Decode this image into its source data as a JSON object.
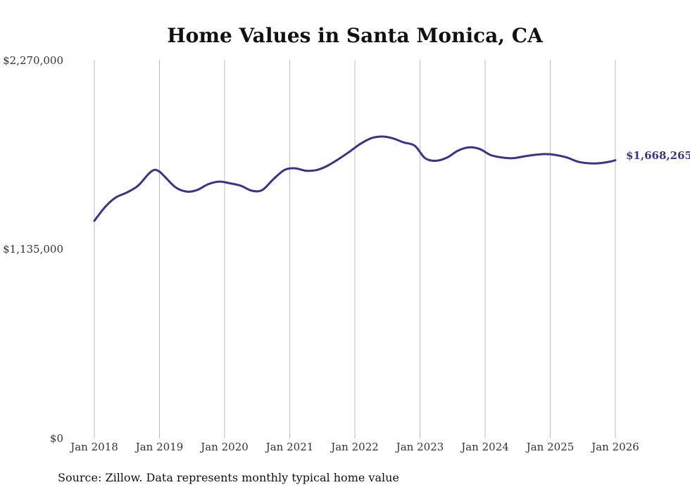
{
  "chart_data": {
    "type": "line",
    "title": "Home Values in Santa Monica, CA",
    "source": "Source: Zillow. Data represents monthly typical home value",
    "xlabel": "",
    "ylabel": "",
    "ylim": [
      0,
      2270000
    ],
    "y_ticks": [
      {
        "value": 0,
        "label": "$0"
      },
      {
        "value": 1135000,
        "label": "$1,135,000"
      },
      {
        "value": 2270000,
        "label": "$2,270,000"
      }
    ],
    "x_range": [
      2018.0,
      2026.0
    ],
    "x_ticks": [
      {
        "value": 2018,
        "label": "Jan 2018"
      },
      {
        "value": 2019,
        "label": "Jan 2019"
      },
      {
        "value": 2020,
        "label": "Jan 2020"
      },
      {
        "value": 2021,
        "label": "Jan 2021"
      },
      {
        "value": 2022,
        "label": "Jan 2022"
      },
      {
        "value": 2023,
        "label": "Jan 2023"
      },
      {
        "value": 2024,
        "label": "Jan 2024"
      },
      {
        "value": 2025,
        "label": "Jan 2025"
      },
      {
        "value": 2026,
        "label": "Jan 2026"
      }
    ],
    "grid": "vertical",
    "end_label": "$1,668,265",
    "series": [
      {
        "name": "Typical home value",
        "color": "#3a3388",
        "points": [
          [
            2018.0,
            1305000
          ],
          [
            2018.17,
            1390000
          ],
          [
            2018.33,
            1445000
          ],
          [
            2018.5,
            1475000
          ],
          [
            2018.67,
            1515000
          ],
          [
            2018.83,
            1585000
          ],
          [
            2018.92,
            1610000
          ],
          [
            2019.0,
            1600000
          ],
          [
            2019.08,
            1570000
          ],
          [
            2019.25,
            1505000
          ],
          [
            2019.42,
            1480000
          ],
          [
            2019.58,
            1490000
          ],
          [
            2019.75,
            1525000
          ],
          [
            2019.92,
            1540000
          ],
          [
            2020.08,
            1530000
          ],
          [
            2020.25,
            1515000
          ],
          [
            2020.42,
            1485000
          ],
          [
            2020.58,
            1490000
          ],
          [
            2020.75,
            1555000
          ],
          [
            2020.92,
            1610000
          ],
          [
            2021.08,
            1620000
          ],
          [
            2021.25,
            1605000
          ],
          [
            2021.42,
            1610000
          ],
          [
            2021.58,
            1635000
          ],
          [
            2021.75,
            1675000
          ],
          [
            2021.92,
            1720000
          ],
          [
            2022.08,
            1765000
          ],
          [
            2022.25,
            1800000
          ],
          [
            2022.42,
            1810000
          ],
          [
            2022.58,
            1800000
          ],
          [
            2022.75,
            1775000
          ],
          [
            2022.92,
            1755000
          ],
          [
            2023.08,
            1680000
          ],
          [
            2023.25,
            1665000
          ],
          [
            2023.42,
            1685000
          ],
          [
            2023.58,
            1725000
          ],
          [
            2023.75,
            1745000
          ],
          [
            2023.92,
            1735000
          ],
          [
            2024.08,
            1700000
          ],
          [
            2024.25,
            1685000
          ],
          [
            2024.42,
            1680000
          ],
          [
            2024.58,
            1690000
          ],
          [
            2024.75,
            1700000
          ],
          [
            2024.92,
            1705000
          ],
          [
            2025.08,
            1700000
          ],
          [
            2025.25,
            1685000
          ],
          [
            2025.42,
            1660000
          ],
          [
            2025.58,
            1650000
          ],
          [
            2025.75,
            1650000
          ],
          [
            2025.92,
            1660000
          ],
          [
            2026.0,
            1668265
          ]
        ]
      }
    ]
  }
}
